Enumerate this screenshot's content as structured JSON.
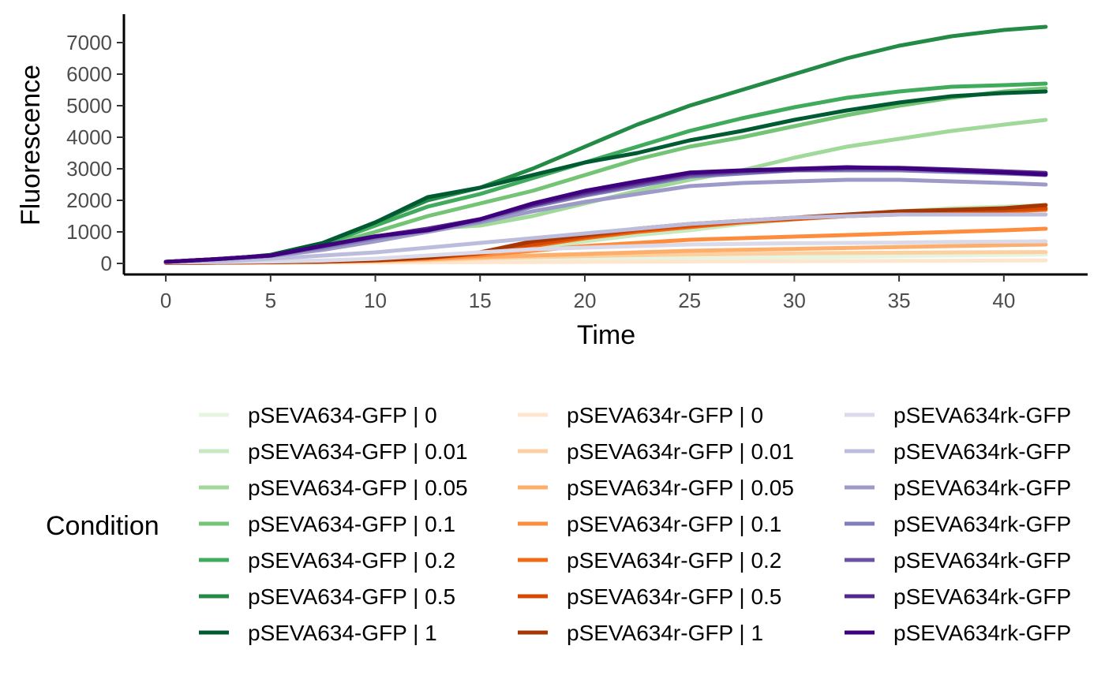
{
  "chart_data": {
    "type": "line",
    "xlabel": "Time",
    "ylabel": "Fluorescence",
    "xlim": [
      -2,
      44
    ],
    "ylim": [
      -350,
      7900
    ],
    "xticks": [
      0,
      5,
      10,
      15,
      20,
      25,
      30,
      35,
      40
    ],
    "yticks": [
      0,
      1000,
      2000,
      3000,
      4000,
      5000,
      6000,
      7000
    ],
    "grid": false,
    "legend": {
      "title": "Condition",
      "position": "bottom",
      "columns": 3
    },
    "x": [
      0,
      2.5,
      5,
      7.5,
      10,
      12.5,
      15,
      17.5,
      20,
      22.5,
      25,
      27.5,
      30,
      32.5,
      35,
      37.5,
      40,
      42
    ],
    "series": [
      {
        "name": "pSEVA634-GFP | 0",
        "color": "#e5f5e0",
        "values": [
          30,
          32,
          35,
          40,
          50,
          60,
          75,
          90,
          110,
          130,
          150,
          170,
          190,
          210,
          230,
          250,
          265,
          280
        ]
      },
      {
        "name": "pSEVA634-GFP | 0.01",
        "color": "#c7e9c0",
        "values": [
          40,
          45,
          60,
          90,
          130,
          200,
          300,
          450,
          700,
          900,
          1050,
          1250,
          1400,
          1550,
          1650,
          1750,
          1800,
          1850
        ]
      },
      {
        "name": "pSEVA634-GFP | 0.05",
        "color": "#a1d99b",
        "values": [
          50,
          100,
          220,
          500,
          850,
          1100,
          1200,
          1500,
          1900,
          2300,
          2650,
          2950,
          3350,
          3700,
          3950,
          4200,
          4400,
          4550
        ]
      },
      {
        "name": "pSEVA634-GFP | 0.1",
        "color": "#74c476",
        "values": [
          50,
          100,
          230,
          550,
          1000,
          1500,
          1900,
          2300,
          2800,
          3300,
          3700,
          4000,
          4350,
          4700,
          5000,
          5250,
          5450,
          5550
        ]
      },
      {
        "name": "pSEVA634-GFP | 0.2",
        "color": "#41ab5d",
        "values": [
          50,
          110,
          250,
          600,
          1200,
          1800,
          2200,
          2700,
          3200,
          3700,
          4200,
          4600,
          4950,
          5250,
          5450,
          5600,
          5650,
          5700
        ]
      },
      {
        "name": "pSEVA634-GFP | 0.5",
        "color": "#238b45",
        "values": [
          50,
          120,
          270,
          650,
          1300,
          2000,
          2400,
          3000,
          3700,
          4400,
          5000,
          5500,
          6000,
          6500,
          6900,
          7200,
          7400,
          7500
        ]
      },
      {
        "name": "pSEVA634-GFP | 1",
        "color": "#005a32",
        "values": [
          50,
          120,
          270,
          650,
          1300,
          2100,
          2400,
          2800,
          3200,
          3500,
          3900,
          4200,
          4550,
          4850,
          5100,
          5300,
          5400,
          5450
        ]
      },
      {
        "name": "pSEVA634r-GFP | 0",
        "color": "#fee6ce",
        "values": [
          20,
          22,
          25,
          28,
          32,
          36,
          40,
          45,
          50,
          55,
          60,
          65,
          70,
          75,
          80,
          85,
          90,
          95
        ]
      },
      {
        "name": "pSEVA634r-GFP | 0.01",
        "color": "#fdd0a2",
        "values": [
          20,
          25,
          30,
          40,
          60,
          100,
          160,
          200,
          230,
          260,
          280,
          300,
          320,
          330,
          340,
          350,
          355,
          360
        ]
      },
      {
        "name": "pSEVA634r-GFP | 0.05",
        "color": "#fdae6b",
        "values": [
          20,
          25,
          35,
          50,
          80,
          130,
          200,
          250,
          300,
          350,
          400,
          430,
          460,
          490,
          520,
          550,
          580,
          600
        ]
      },
      {
        "name": "pSEVA634r-GFP | 0.1",
        "color": "#fd8d3c",
        "values": [
          20,
          25,
          35,
          55,
          90,
          150,
          250,
          400,
          550,
          650,
          750,
          800,
          850,
          900,
          950,
          1000,
          1050,
          1100
        ]
      },
      {
        "name": "pSEVA634r-GFP | 0.2",
        "color": "#f16913",
        "values": [
          20,
          25,
          40,
          60,
          100,
          180,
          300,
          550,
          800,
          1000,
          1150,
          1300,
          1400,
          1500,
          1550,
          1600,
          1650,
          1700
        ]
      },
      {
        "name": "pSEVA634r-GFP | 0.5",
        "color": "#d94801",
        "values": [
          20,
          25,
          40,
          60,
          100,
          180,
          320,
          600,
          850,
          1050,
          1200,
          1330,
          1420,
          1500,
          1560,
          1620,
          1680,
          1750
        ]
      },
      {
        "name": "pSEVA634r-GFP | 1",
        "color": "#a63603",
        "values": [
          20,
          25,
          40,
          60,
          100,
          180,
          350,
          700,
          900,
          1100,
          1250,
          1350,
          1450,
          1550,
          1650,
          1700,
          1750,
          1850
        ]
      },
      {
        "name": "pSEVA634rk-GFP",
        "color": "#dadaeb",
        "values": [
          30,
          40,
          60,
          90,
          150,
          250,
          350,
          450,
          500,
          550,
          600,
          620,
          640,
          650,
          660,
          680,
          690,
          700
        ]
      },
      {
        "name": "pSEVA634rk-GFP",
        "color": "#bcbddc",
        "values": [
          40,
          60,
          150,
          250,
          350,
          500,
          650,
          800,
          950,
          1100,
          1250,
          1350,
          1450,
          1500,
          1550,
          1550,
          1550,
          1550
        ]
      },
      {
        "name": "pSEVA634rk-GFP",
        "color": "#9e9ac8",
        "values": [
          50,
          130,
          230,
          430,
          700,
          1000,
          1300,
          1650,
          1950,
          2200,
          2450,
          2550,
          2600,
          2650,
          2650,
          2600,
          2550,
          2500
        ]
      },
      {
        "name": "pSEVA634rk-GFP",
        "color": "#807dba",
        "values": [
          50,
          140,
          250,
          500,
          800,
          1050,
          1350,
          1800,
          2150,
          2450,
          2750,
          2850,
          2950,
          2950,
          2950,
          2900,
          2850,
          2800
        ]
      },
      {
        "name": "pSEVA634rk-GFP",
        "color": "#6a51a3",
        "values": [
          50,
          140,
          250,
          550,
          850,
          1100,
          1400,
          1850,
          2200,
          2500,
          2800,
          2900,
          2950,
          3000,
          3000,
          2950,
          2900,
          2850
        ]
      },
      {
        "name": "pSEVA634rk-GFP",
        "color": "#54278f",
        "values": [
          50,
          140,
          250,
          550,
          850,
          1100,
          1400,
          1850,
          2250,
          2550,
          2850,
          2930,
          2980,
          3030,
          3030,
          2980,
          2920,
          2870
        ]
      },
      {
        "name": "pSEVA634rk-GFP",
        "color": "#3f007d",
        "values": [
          50,
          140,
          250,
          560,
          860,
          1050,
          1400,
          1900,
          2300,
          2600,
          2880,
          2950,
          3000,
          3050,
          3020,
          2950,
          2880,
          2820
        ]
      }
    ]
  }
}
